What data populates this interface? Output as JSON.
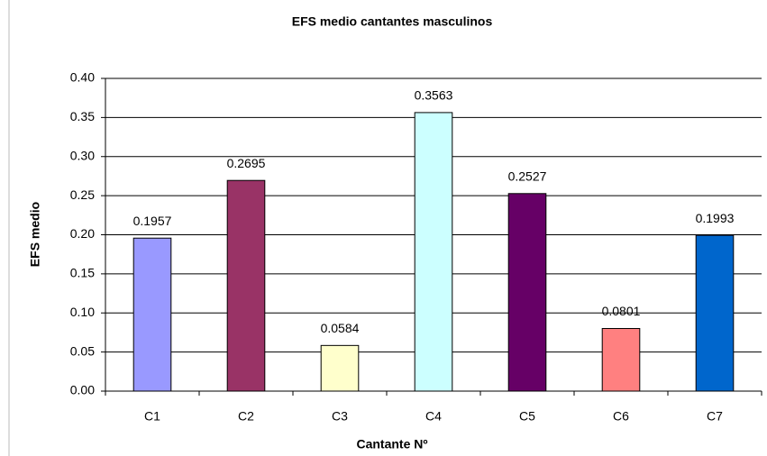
{
  "chart_data": {
    "type": "bar",
    "title": "EFS medio cantantes masculinos",
    "x_label": "Cantante Nº",
    "y_label": "EFS medio",
    "categories": [
      "C1",
      "C2",
      "C3",
      "C4",
      "C5",
      "C6",
      "C7"
    ],
    "values": [
      0.1957,
      0.2695,
      0.0584,
      0.3563,
      0.2527,
      0.0801,
      0.1993
    ],
    "colors": [
      "#9999ff",
      "#993366",
      "#ffffcc",
      "#ccffff",
      "#660066",
      "#ff8080",
      "#0066cc"
    ],
    "ylim": [
      0,
      0.4
    ],
    "yticks": [
      {
        "value": 0,
        "label": "0.00"
      },
      0.05,
      {
        "value": 0.1,
        "label": "0.10"
      },
      0.15,
      {
        "value": 0.2,
        "label": "0.20"
      },
      0.25,
      {
        "value": 0.3,
        "label": "0.30"
      },
      0.35,
      {
        "value": 0.4,
        "label": "0.40"
      }
    ],
    "grid": true
  }
}
